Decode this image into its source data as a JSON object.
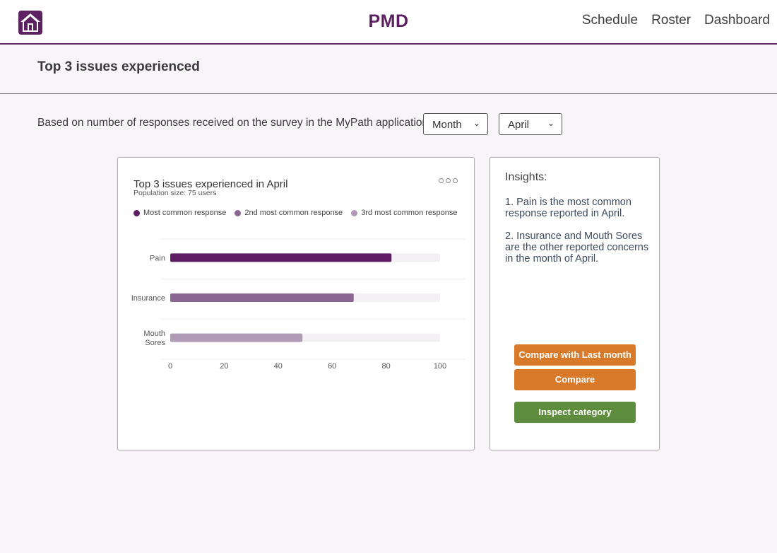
{
  "header": {
    "brand": "PMD",
    "nav": [
      "Schedule",
      "Roster",
      "Dashboard"
    ]
  },
  "page": {
    "title": "Top 3 issues experienced",
    "filter_text": "Based on number of responses received on the survey in the MyPath application per",
    "period_select": "Month",
    "month_select": "April"
  },
  "chart_data": {
    "type": "bar",
    "orientation": "horizontal",
    "title": "Top 3 issues experienced in April",
    "subtitle": "Population size: 75 users",
    "categories": [
      "Pain",
      "Insurance",
      "Mouth Sores"
    ],
    "values": [
      82,
      68,
      49
    ],
    "xlim": [
      0,
      100
    ],
    "xticks": [
      "0",
      "20",
      "40",
      "60",
      "80",
      "100"
    ],
    "legend": [
      "Most common response",
      "2nd most common response",
      "3rd most common response"
    ],
    "legend_position": "top",
    "grid": true,
    "colors": [
      "#5f1b64",
      "#8a6790",
      "#b09ab6"
    ],
    "track_color": "#f3f1f3"
  },
  "insights": {
    "title": "Insights:",
    "items": [
      "1. Pain is the most common response reported in April.",
      "2. Insurance and Mouth Sores are the other reported concerns in the month of April."
    ]
  },
  "buttons": {
    "compare_last": "Compare with Last month",
    "compare": "Compare",
    "inspect": "Inspect category"
  },
  "colors": {
    "brand": "#5c2160",
    "orange": "#d97a2a",
    "green": "#5f8d3e"
  }
}
